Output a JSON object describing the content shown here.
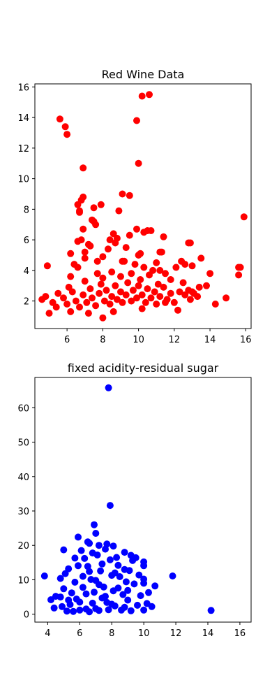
{
  "chart_data": [
    {
      "type": "scatter",
      "title": "Red Wine Data",
      "color": "#ff0000",
      "xlim": [
        4.2,
        16.3
      ],
      "ylim": [
        0.2,
        16.2
      ],
      "xticks": [
        6,
        8,
        10,
        12,
        14,
        16
      ],
      "yticks": [
        2,
        4,
        6,
        8,
        10,
        12,
        14,
        16
      ],
      "points": [
        [
          5.6,
          13.9
        ],
        [
          5.9,
          13.4
        ],
        [
          6.0,
          12.9
        ],
        [
          6.9,
          10.7
        ],
        [
          9.9,
          13.8
        ],
        [
          10.2,
          15.4
        ],
        [
          10.6,
          15.5
        ],
        [
          10.0,
          11.0
        ],
        [
          9.1,
          9.0
        ],
        [
          9.5,
          8.9
        ],
        [
          6.6,
          8.3
        ],
        [
          6.8,
          8.6
        ],
        [
          6.9,
          8.8
        ],
        [
          6.7,
          7.9
        ],
        [
          6.7,
          7.8
        ],
        [
          7.5,
          8.1
        ],
        [
          7.9,
          8.3
        ],
        [
          8.9,
          7.9
        ],
        [
          15.9,
          7.5
        ],
        [
          6.9,
          6.7
        ],
        [
          7.4,
          7.3
        ],
        [
          7.5,
          7.2
        ],
        [
          7.6,
          7.0
        ],
        [
          10.3,
          6.5
        ],
        [
          10.5,
          6.6
        ],
        [
          10.7,
          6.6
        ],
        [
          9.9,
          6.7
        ],
        [
          4.9,
          4.3
        ],
        [
          11.4,
          6.2
        ],
        [
          12.8,
          5.8
        ],
        [
          12.9,
          5.8
        ],
        [
          10.1,
          5.1
        ],
        [
          10.0,
          5.0
        ],
        [
          11.2,
          5.2
        ],
        [
          11.3,
          5.2
        ],
        [
          12.4,
          4.6
        ],
        [
          12.6,
          4.4
        ],
        [
          13.5,
          4.8
        ],
        [
          14.0,
          3.8
        ],
        [
          15.6,
          4.2
        ],
        [
          15.7,
          4.2
        ],
        [
          15.6,
          3.7
        ],
        [
          14.3,
          1.8
        ],
        [
          14.9,
          2.2
        ],
        [
          13.0,
          4.3
        ],
        [
          12.1,
          4.2
        ],
        [
          9.5,
          6.3
        ],
        [
          8.8,
          6.1
        ],
        [
          9.2,
          4.6
        ],
        [
          9.1,
          4.6
        ],
        [
          8.4,
          6.0
        ],
        [
          8.6,
          6.4
        ],
        [
          7.3,
          5.6
        ],
        [
          7.0,
          5.2
        ],
        [
          6.2,
          5.1
        ],
        [
          6.4,
          4.4
        ],
        [
          6.2,
          3.6
        ],
        [
          8.0,
          0.9
        ],
        [
          6.6,
          5.9
        ],
        [
          6.8,
          6.0
        ],
        [
          7.2,
          5.7
        ],
        [
          8.3,
          5.4
        ],
        [
          8.7,
          5.8
        ],
        [
          11.0,
          4.5
        ],
        [
          11.2,
          4.0
        ],
        [
          11.5,
          3.8
        ],
        [
          10.3,
          4.2
        ],
        [
          10.8,
          4.0
        ],
        [
          9.8,
          4.4
        ],
        [
          9.3,
          5.5
        ],
        [
          8.0,
          4.9
        ],
        [
          7.7,
          4.6
        ],
        [
          7.0,
          4.8
        ],
        [
          6.6,
          4.2
        ],
        [
          11.8,
          3.4
        ],
        [
          12.5,
          3.2
        ],
        [
          13.0,
          2.6
        ],
        [
          13.4,
          2.9
        ],
        [
          13.8,
          3.0
        ],
        [
          13.3,
          2.3
        ],
        [
          12.9,
          2.1
        ],
        [
          12.2,
          1.4
        ],
        [
          11.5,
          1.9
        ],
        [
          10.2,
          1.5
        ],
        [
          8.6,
          1.3
        ],
        [
          7.2,
          1.2
        ],
        [
          6.2,
          1.3
        ],
        [
          5.0,
          1.2
        ],
        [
          5.4,
          1.6
        ],
        [
          4.6,
          2.1
        ],
        [
          4.8,
          2.3
        ],
        [
          5.2,
          1.9
        ],
        [
          5.5,
          2.5
        ],
        [
          5.8,
          2.2
        ],
        [
          6.0,
          1.8
        ],
        [
          6.3,
          2.6
        ],
        [
          6.5,
          2.0
        ],
        [
          6.7,
          1.6
        ],
        [
          6.9,
          2.4
        ],
        [
          7.1,
          1.9
        ],
        [
          7.3,
          2.8
        ],
        [
          7.4,
          2.2
        ],
        [
          7.6,
          1.7
        ],
        [
          7.8,
          2.5
        ],
        [
          7.9,
          3.1
        ],
        [
          8.1,
          2.0
        ],
        [
          8.2,
          2.7
        ],
        [
          8.4,
          1.8
        ],
        [
          8.5,
          2.3
        ],
        [
          8.7,
          3.0
        ],
        [
          8.8,
          2.1
        ],
        [
          9.0,
          2.6
        ],
        [
          9.1,
          1.9
        ],
        [
          9.3,
          2.4
        ],
        [
          9.4,
          3.2
        ],
        [
          9.6,
          2.0
        ],
        [
          9.7,
          2.7
        ],
        [
          9.9,
          2.2
        ],
        [
          10.0,
          3.0
        ],
        [
          10.2,
          2.4
        ],
        [
          10.4,
          1.9
        ],
        [
          10.5,
          2.8
        ],
        [
          10.7,
          2.2
        ],
        [
          10.9,
          2.6
        ],
        [
          11.0,
          1.8
        ],
        [
          11.2,
          2.3
        ],
        [
          11.4,
          2.9
        ],
        [
          11.6,
          2.1
        ],
        [
          11.8,
          2.5
        ],
        [
          12.0,
          1.9
        ],
        [
          12.3,
          2.6
        ],
        [
          12.6,
          2.4
        ],
        [
          12.8,
          2.7
        ],
        [
          13.1,
          2.5
        ],
        [
          6.1,
          2.9
        ],
        [
          7.0,
          3.3
        ],
        [
          8.0,
          3.5
        ],
        [
          9.0,
          3.6
        ],
        [
          10.1,
          3.4
        ],
        [
          10.6,
          3.7
        ],
        [
          11.1,
          3.1
        ],
        [
          7.7,
          3.8
        ],
        [
          8.5,
          3.9
        ],
        [
          9.6,
          3.8
        ]
      ]
    },
    {
      "type": "scatter",
      "title": "fixed acidity-residual sugar",
      "color": "#0000ff",
      "xlim": [
        3.2,
        16.7
      ],
      "ylim": [
        -2.3,
        68.8
      ],
      "xticks": [
        4,
        6,
        8,
        10,
        12,
        14,
        16
      ],
      "yticks": [
        0,
        10,
        20,
        30,
        40,
        50,
        60
      ],
      "points": [
        [
          7.8,
          65.8
        ],
        [
          7.9,
          31.6
        ],
        [
          6.9,
          26.0
        ],
        [
          7.0,
          23.5
        ],
        [
          3.8,
          11.1
        ],
        [
          4.2,
          4.2
        ],
        [
          4.5,
          5.2
        ],
        [
          4.8,
          5.0
        ],
        [
          5.0,
          18.7
        ],
        [
          5.9,
          22.4
        ],
        [
          6.5,
          21.0
        ],
        [
          6.6,
          20.6
        ],
        [
          11.8,
          11.1
        ],
        [
          10.7,
          8.2
        ],
        [
          10.3,
          6.3
        ],
        [
          14.2,
          1.1
        ],
        [
          10.0,
          15.2
        ],
        [
          10.0,
          14.1
        ],
        [
          9.2,
          17.1
        ],
        [
          9.5,
          16.4
        ],
        [
          8.8,
          18.0
        ],
        [
          8.1,
          19.8
        ],
        [
          7.7,
          20.4
        ],
        [
          7.2,
          20.0
        ],
        [
          10.0,
          10.2
        ],
        [
          10.0,
          9.0
        ],
        [
          10.5,
          2.2
        ],
        [
          10.0,
          1.2
        ],
        [
          5.7,
          16.3
        ],
        [
          5.3,
          13.2
        ],
        [
          5.1,
          11.8
        ],
        [
          4.8,
          10.4
        ],
        [
          4.4,
          1.8
        ],
        [
          4.9,
          2.2
        ],
        [
          5.2,
          0.9
        ],
        [
          5.4,
          2.8
        ],
        [
          5.6,
          0.8
        ],
        [
          5.8,
          4.4
        ],
        [
          6.0,
          1.2
        ],
        [
          6.2,
          7.8
        ],
        [
          6.4,
          1.5
        ],
        [
          6.6,
          12.4
        ],
        [
          6.8,
          3.2
        ],
        [
          7.0,
          9.8
        ],
        [
          7.2,
          1.1
        ],
        [
          7.4,
          14.6
        ],
        [
          7.6,
          5.2
        ],
        [
          7.8,
          1.3
        ],
        [
          8.0,
          11.3
        ],
        [
          8.2,
          2.4
        ],
        [
          8.4,
          7.6
        ],
        [
          8.6,
          1.2
        ],
        [
          8.8,
          13.0
        ],
        [
          9.0,
          4.1
        ],
        [
          9.2,
          1.0
        ],
        [
          9.4,
          8.8
        ],
        [
          9.6,
          2.6
        ],
        [
          9.8,
          5.4
        ],
        [
          6.1,
          18.5
        ],
        [
          6.3,
          16.2
        ],
        [
          6.5,
          13.9
        ],
        [
          6.7,
          10.1
        ],
        [
          6.9,
          6.4
        ],
        [
          7.1,
          17.2
        ],
        [
          7.3,
          12.6
        ],
        [
          7.5,
          7.9
        ],
        [
          7.7,
          3.4
        ],
        [
          7.9,
          15.8
        ],
        [
          8.1,
          6.8
        ],
        [
          8.3,
          16.5
        ],
        [
          8.5,
          10.9
        ],
        [
          8.7,
          5.7
        ],
        [
          8.9,
          9.4
        ],
        [
          9.1,
          12.7
        ],
        [
          5.5,
          6.2
        ],
        [
          5.7,
          9.3
        ],
        [
          5.9,
          14.1
        ],
        [
          6.0,
          3.5
        ],
        [
          6.2,
          11.0
        ],
        [
          6.4,
          5.9
        ],
        [
          6.8,
          17.8
        ],
        [
          7.0,
          1.6
        ],
        [
          7.4,
          4.7
        ],
        [
          7.6,
          18.9
        ],
        [
          8.0,
          2.9
        ],
        [
          8.4,
          14.2
        ],
        [
          8.8,
          2.0
        ],
        [
          9.3,
          15.6
        ],
        [
          9.7,
          11.4
        ],
        [
          10.2,
          3.1
        ],
        [
          5.0,
          7.4
        ],
        [
          5.3,
          4.1
        ],
        [
          6.6,
          0.7
        ],
        [
          7.2,
          8.6
        ],
        [
          8.2,
          12.0
        ],
        [
          9.0,
          6.9
        ]
      ]
    }
  ]
}
